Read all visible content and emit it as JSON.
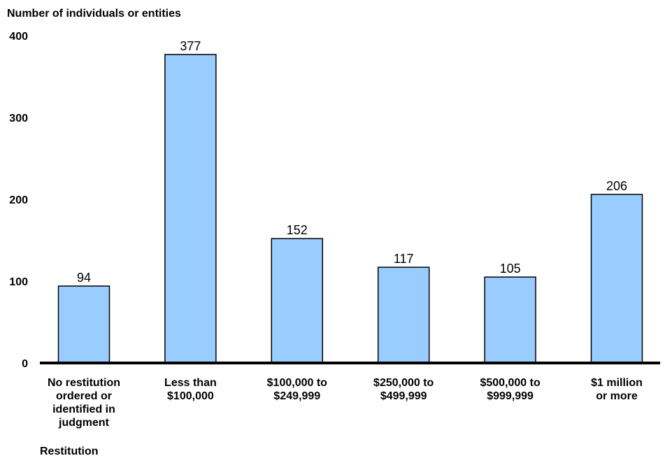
{
  "chart_data": {
    "type": "bar",
    "ylabel": "Number of individuals or entities",
    "xlabel": "Restitution",
    "ylim": [
      0,
      400
    ],
    "yticks": [
      "0",
      "100",
      "200",
      "300",
      "400"
    ],
    "categories": [
      [
        "No restitution",
        "ordered or",
        "identified in",
        "judgment"
      ],
      [
        "Less than",
        "$100,000"
      ],
      [
        "$100,000 to",
        "$249,999"
      ],
      [
        "$250,000 to",
        "$499,999"
      ],
      [
        "$500,000 to",
        "$999,999"
      ],
      [
        "$1 million",
        "or more"
      ]
    ],
    "values": [
      94,
      377,
      152,
      117,
      105,
      206
    ],
    "bar_color": "#99ccff",
    "bar_stroke": "#000000",
    "grid": false
  }
}
